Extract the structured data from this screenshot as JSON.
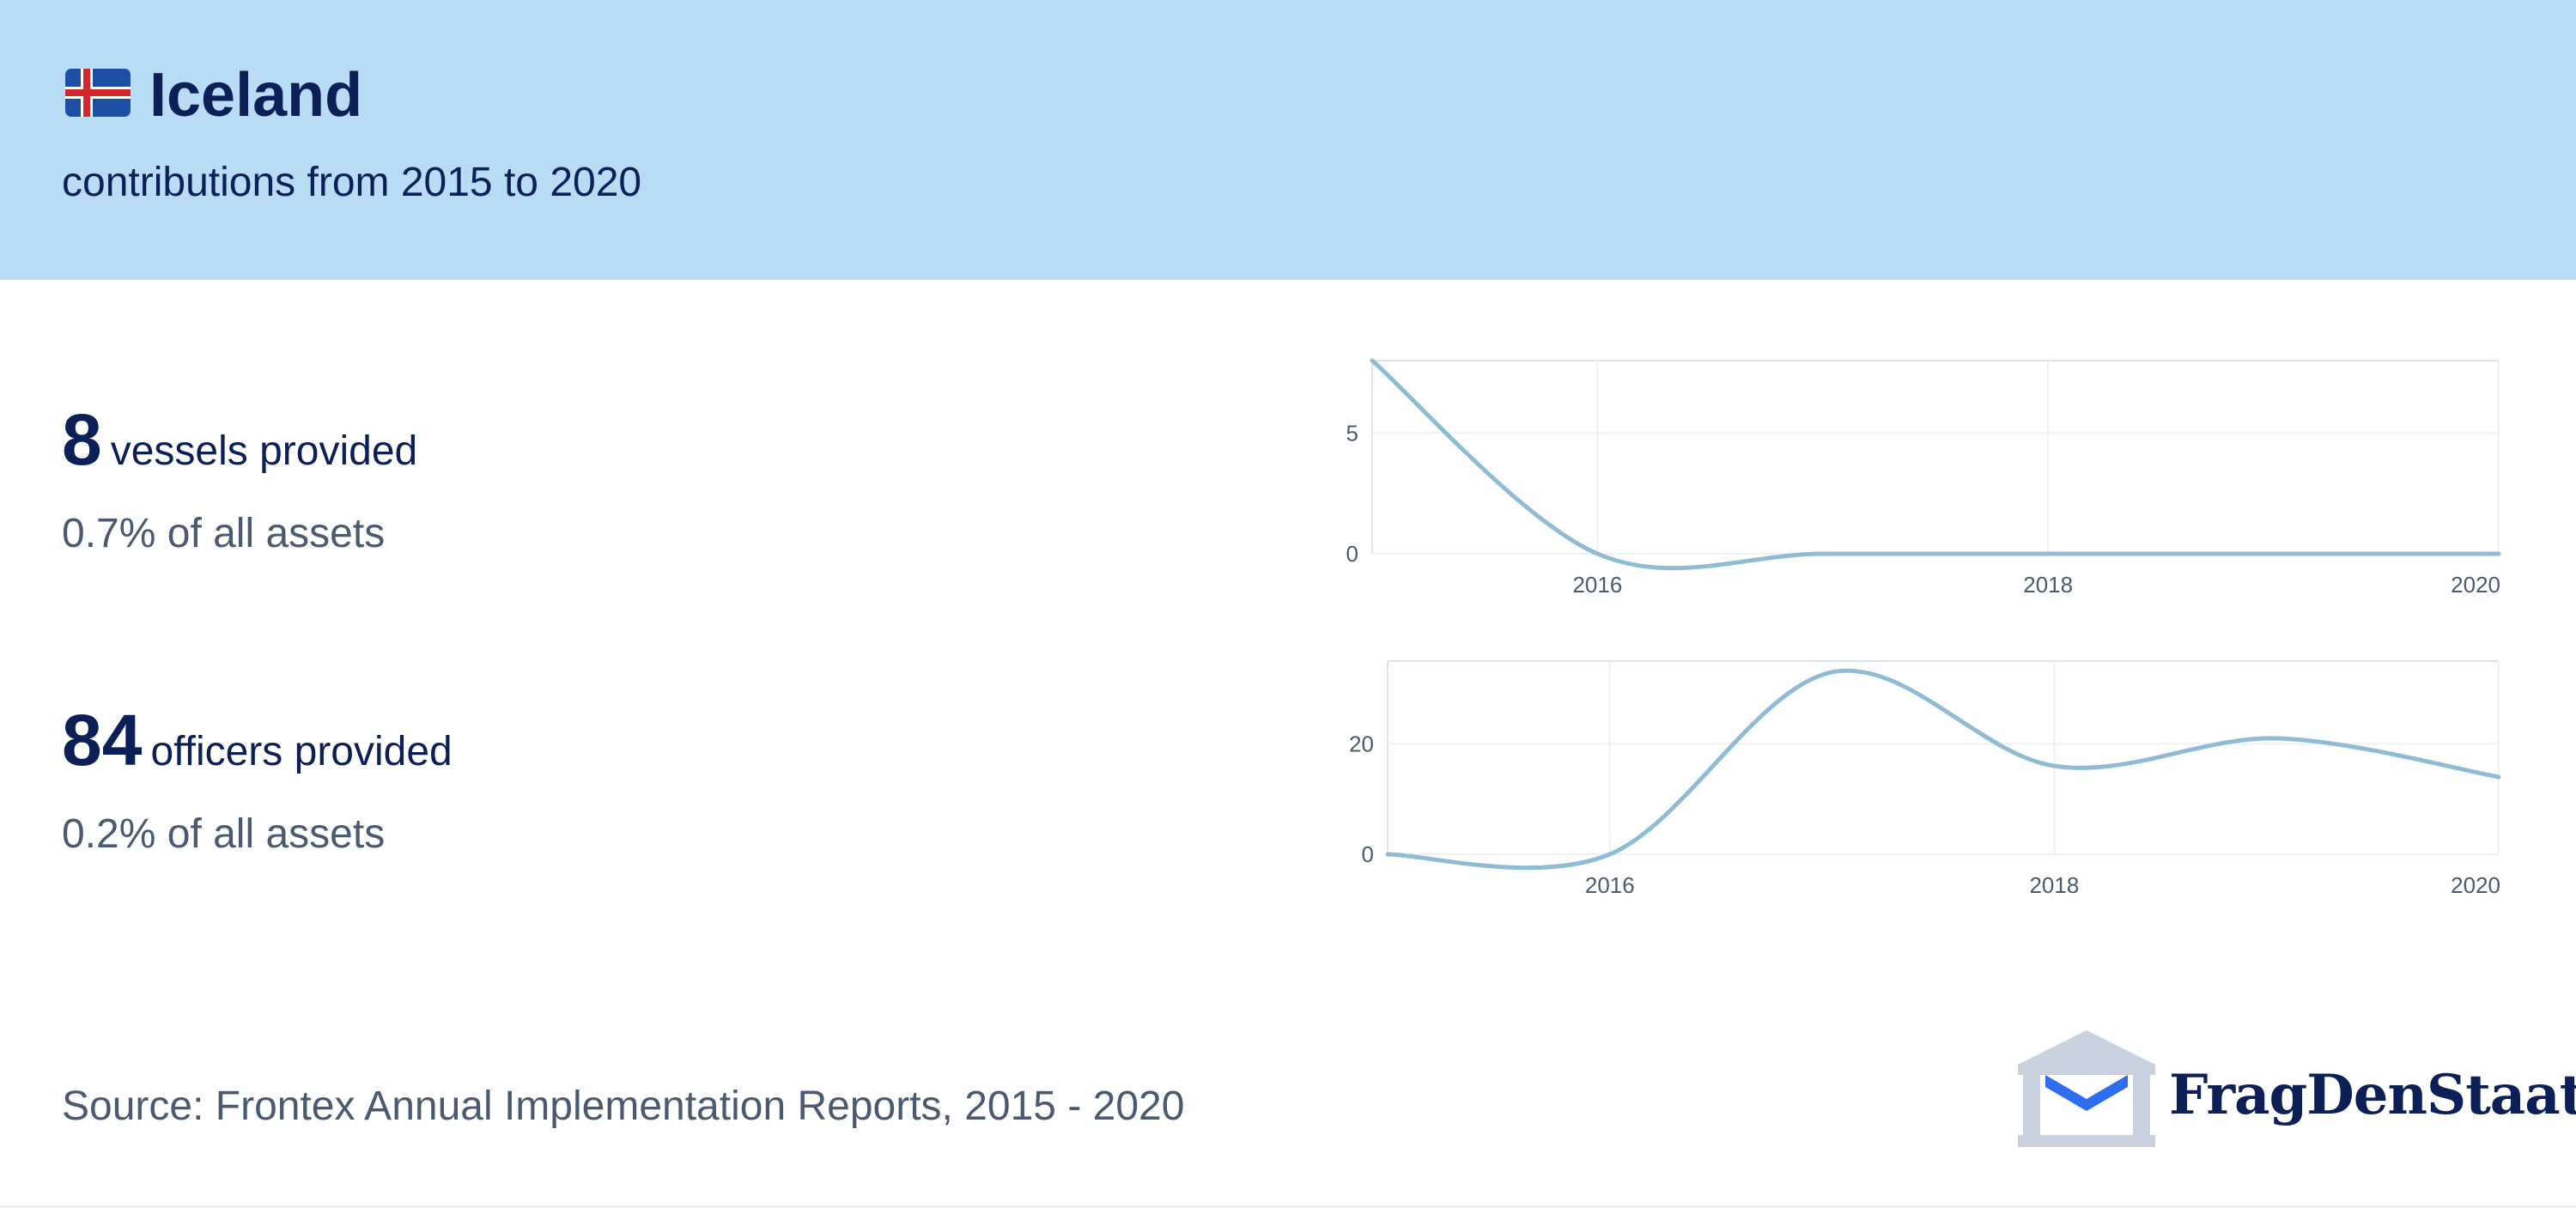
{
  "header": {
    "country": "Iceland",
    "subtitle": "contributions from 2015 to 2020",
    "flag_icon": "iceland-flag-icon"
  },
  "stats": [
    {
      "number": "8",
      "label": "vessels provided",
      "share": "0.7% of all assets"
    },
    {
      "number": "84",
      "label": "officers provided",
      "share": "0.2% of all assets"
    }
  ],
  "source": "Source: Frontex Annual Implementation Reports, 2015 - 2020",
  "logo": {
    "text": "FragDenStaat",
    "icon": "building-envelope-icon"
  },
  "colors": {
    "header_bg": "#b7dcf4",
    "text_dark": "#0c1f57",
    "text_muted": "#4a5a70",
    "line": "#8fbcd4",
    "logo_building": "#c9d1de",
    "logo_envelope": "#2f6df0"
  },
  "chart_data": [
    {
      "type": "line",
      "title": "",
      "xlabel": "",
      "ylabel": "",
      "x": [
        2015,
        2016,
        2017,
        2018,
        2019,
        2020
      ],
      "series": [
        {
          "values": [
            8,
            0,
            0,
            0,
            0,
            0
          ]
        }
      ],
      "xlim": [
        2015,
        2020
      ],
      "ylim": [
        0,
        8
      ],
      "xticks": [
        "2016",
        "2018",
        "2020"
      ],
      "yticks": [
        "0",
        "5"
      ],
      "grid": true,
      "smooth": true
    },
    {
      "type": "line",
      "title": "",
      "xlabel": "",
      "ylabel": "",
      "x": [
        2015,
        2016,
        2017,
        2018,
        2019,
        2020
      ],
      "series": [
        {
          "values": [
            0,
            0,
            33,
            16,
            21,
            14
          ]
        }
      ],
      "xlim": [
        2015,
        2020
      ],
      "ylim": [
        0,
        35
      ],
      "xticks": [
        "2016",
        "2018",
        "2020"
      ],
      "yticks": [
        "0",
        "20"
      ],
      "grid": true,
      "smooth": true
    }
  ]
}
